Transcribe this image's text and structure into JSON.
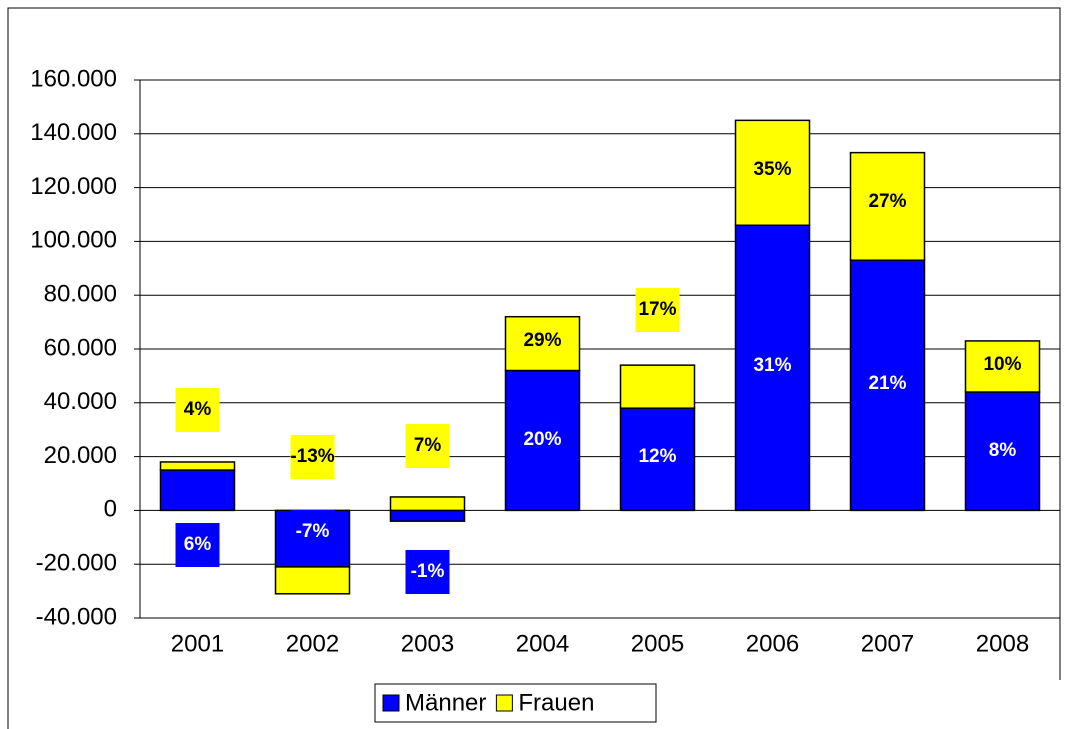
{
  "chart_data": {
    "type": "stacked_bar",
    "categories": [
      "2001",
      "2002",
      "2003",
      "2004",
      "2005",
      "2006",
      "2007",
      "2008"
    ],
    "series": [
      {
        "name": "Männer",
        "color": "#0000ff",
        "label_color": "#ffffff",
        "values": [
          15000,
          -21000,
          -4000,
          52000,
          38000,
          106000,
          93000,
          44000
        ],
        "percent_labels": [
          "6%",
          "-7%",
          "-1%",
          "20%",
          "12%",
          "31%",
          "21%",
          "8%"
        ]
      },
      {
        "name": "Frauen",
        "color": "#ffff00",
        "label_color": "#000000",
        "values": [
          3000,
          -10000,
          5000,
          20000,
          16000,
          39000,
          40000,
          19000
        ],
        "percent_labels": [
          "4%",
          "-13%",
          "7%",
          "29%",
          "17%",
          "35%",
          "27%",
          "10%"
        ]
      }
    ],
    "ylim": [
      -40000,
      160000
    ],
    "yticks": [
      {
        "value": -40000,
        "label": "-40.000"
      },
      {
        "value": -20000,
        "label": "-20.000"
      },
      0,
      {
        "value": 20000,
        "label": "20.000"
      },
      {
        "value": 40000,
        "label": "40.000"
      },
      {
        "value": 60000,
        "label": "60.000"
      },
      {
        "value": 80000,
        "label": "80.000"
      },
      {
        "value": 100000,
        "label": "100.000"
      },
      {
        "value": 120000,
        "label": "120.000"
      },
      {
        "value": 140000,
        "label": "140.000"
      },
      {
        "value": 160000,
        "label": "160.000"
      }
    ],
    "grid": true,
    "legend": "bottom"
  }
}
